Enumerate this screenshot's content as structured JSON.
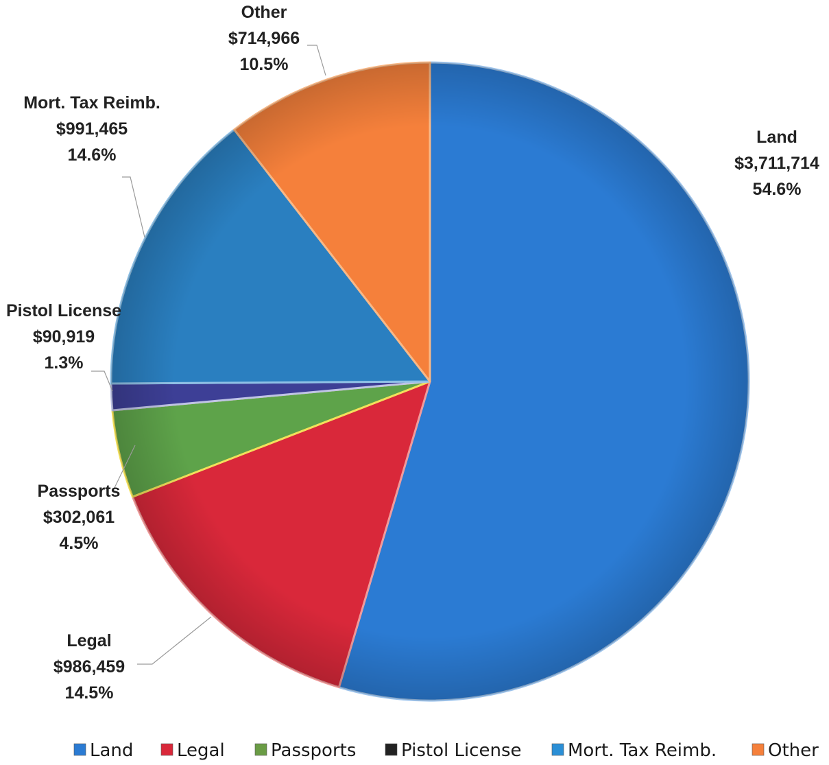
{
  "chart_data": {
    "type": "pie",
    "categories": [
      "Land",
      "Legal",
      "Passports",
      "Pistol License",
      "Mort. Tax Reimb.",
      "Other"
    ],
    "values": [
      3711714,
      986459,
      302061,
      90919,
      991465,
      714966
    ],
    "value_labels": [
      "$3,711,714",
      "$986,459",
      "$302,061",
      "$90,919",
      "$991,465",
      "$714,966"
    ],
    "percent_labels": [
      "54.6%",
      "14.5%",
      "4.5%",
      "1.3%",
      "14.6%",
      "10.5%"
    ],
    "legend_labels": [
      "Land",
      "Legal",
      "Passports",
      "Pistol License",
      "Mort. Tax Reimb.",
      "Other"
    ],
    "colors": [
      "#2b7bd3",
      "#d9283a",
      "#5ea34a",
      "#3d3f96",
      "#2a7fc0",
      "#f5803b"
    ],
    "legend_swatch_colors": [
      "#2b7bd3",
      "#d9283a",
      "#6a9c45",
      "#222222",
      "#2b8fd6",
      "#f5803b"
    ],
    "separator_colors": [
      "#9ec4ec",
      "#f19a9a",
      "#f2e15a",
      "#bfc4e6",
      "#8fc1e6",
      "#f9b886"
    ],
    "legend_placement": "bottom"
  }
}
